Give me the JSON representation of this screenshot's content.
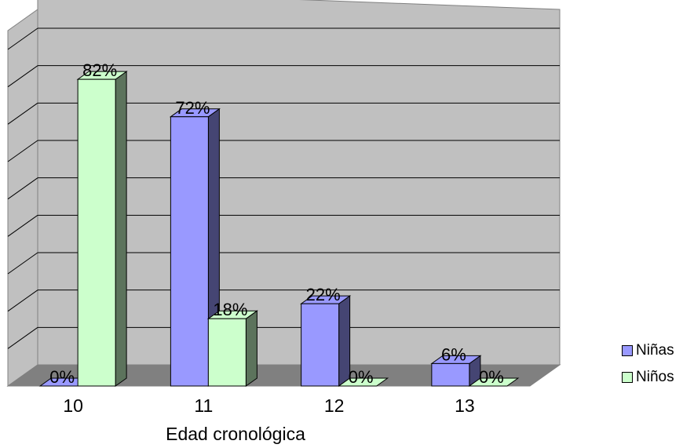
{
  "chart_data": {
    "type": "bar",
    "categories": [
      "10",
      "11",
      "12",
      "13"
    ],
    "series": [
      {
        "name": "Niñas",
        "color": "#9999ff",
        "values": [
          0,
          72,
          22,
          6
        ],
        "labels": [
          "0%",
          "72%",
          "22%",
          "6%"
        ]
      },
      {
        "name": "Niños",
        "color": "#ccffcc",
        "values": [
          82,
          18,
          0,
          0
        ],
        "labels": [
          "82%",
          "18%",
          "0%",
          "0%"
        ]
      }
    ],
    "title": "",
    "xlabel": "Edad cronológica",
    "ylabel": "",
    "ylim": [
      0,
      90
    ],
    "grid": true,
    "three_d": true,
    "legend_position": "right"
  }
}
